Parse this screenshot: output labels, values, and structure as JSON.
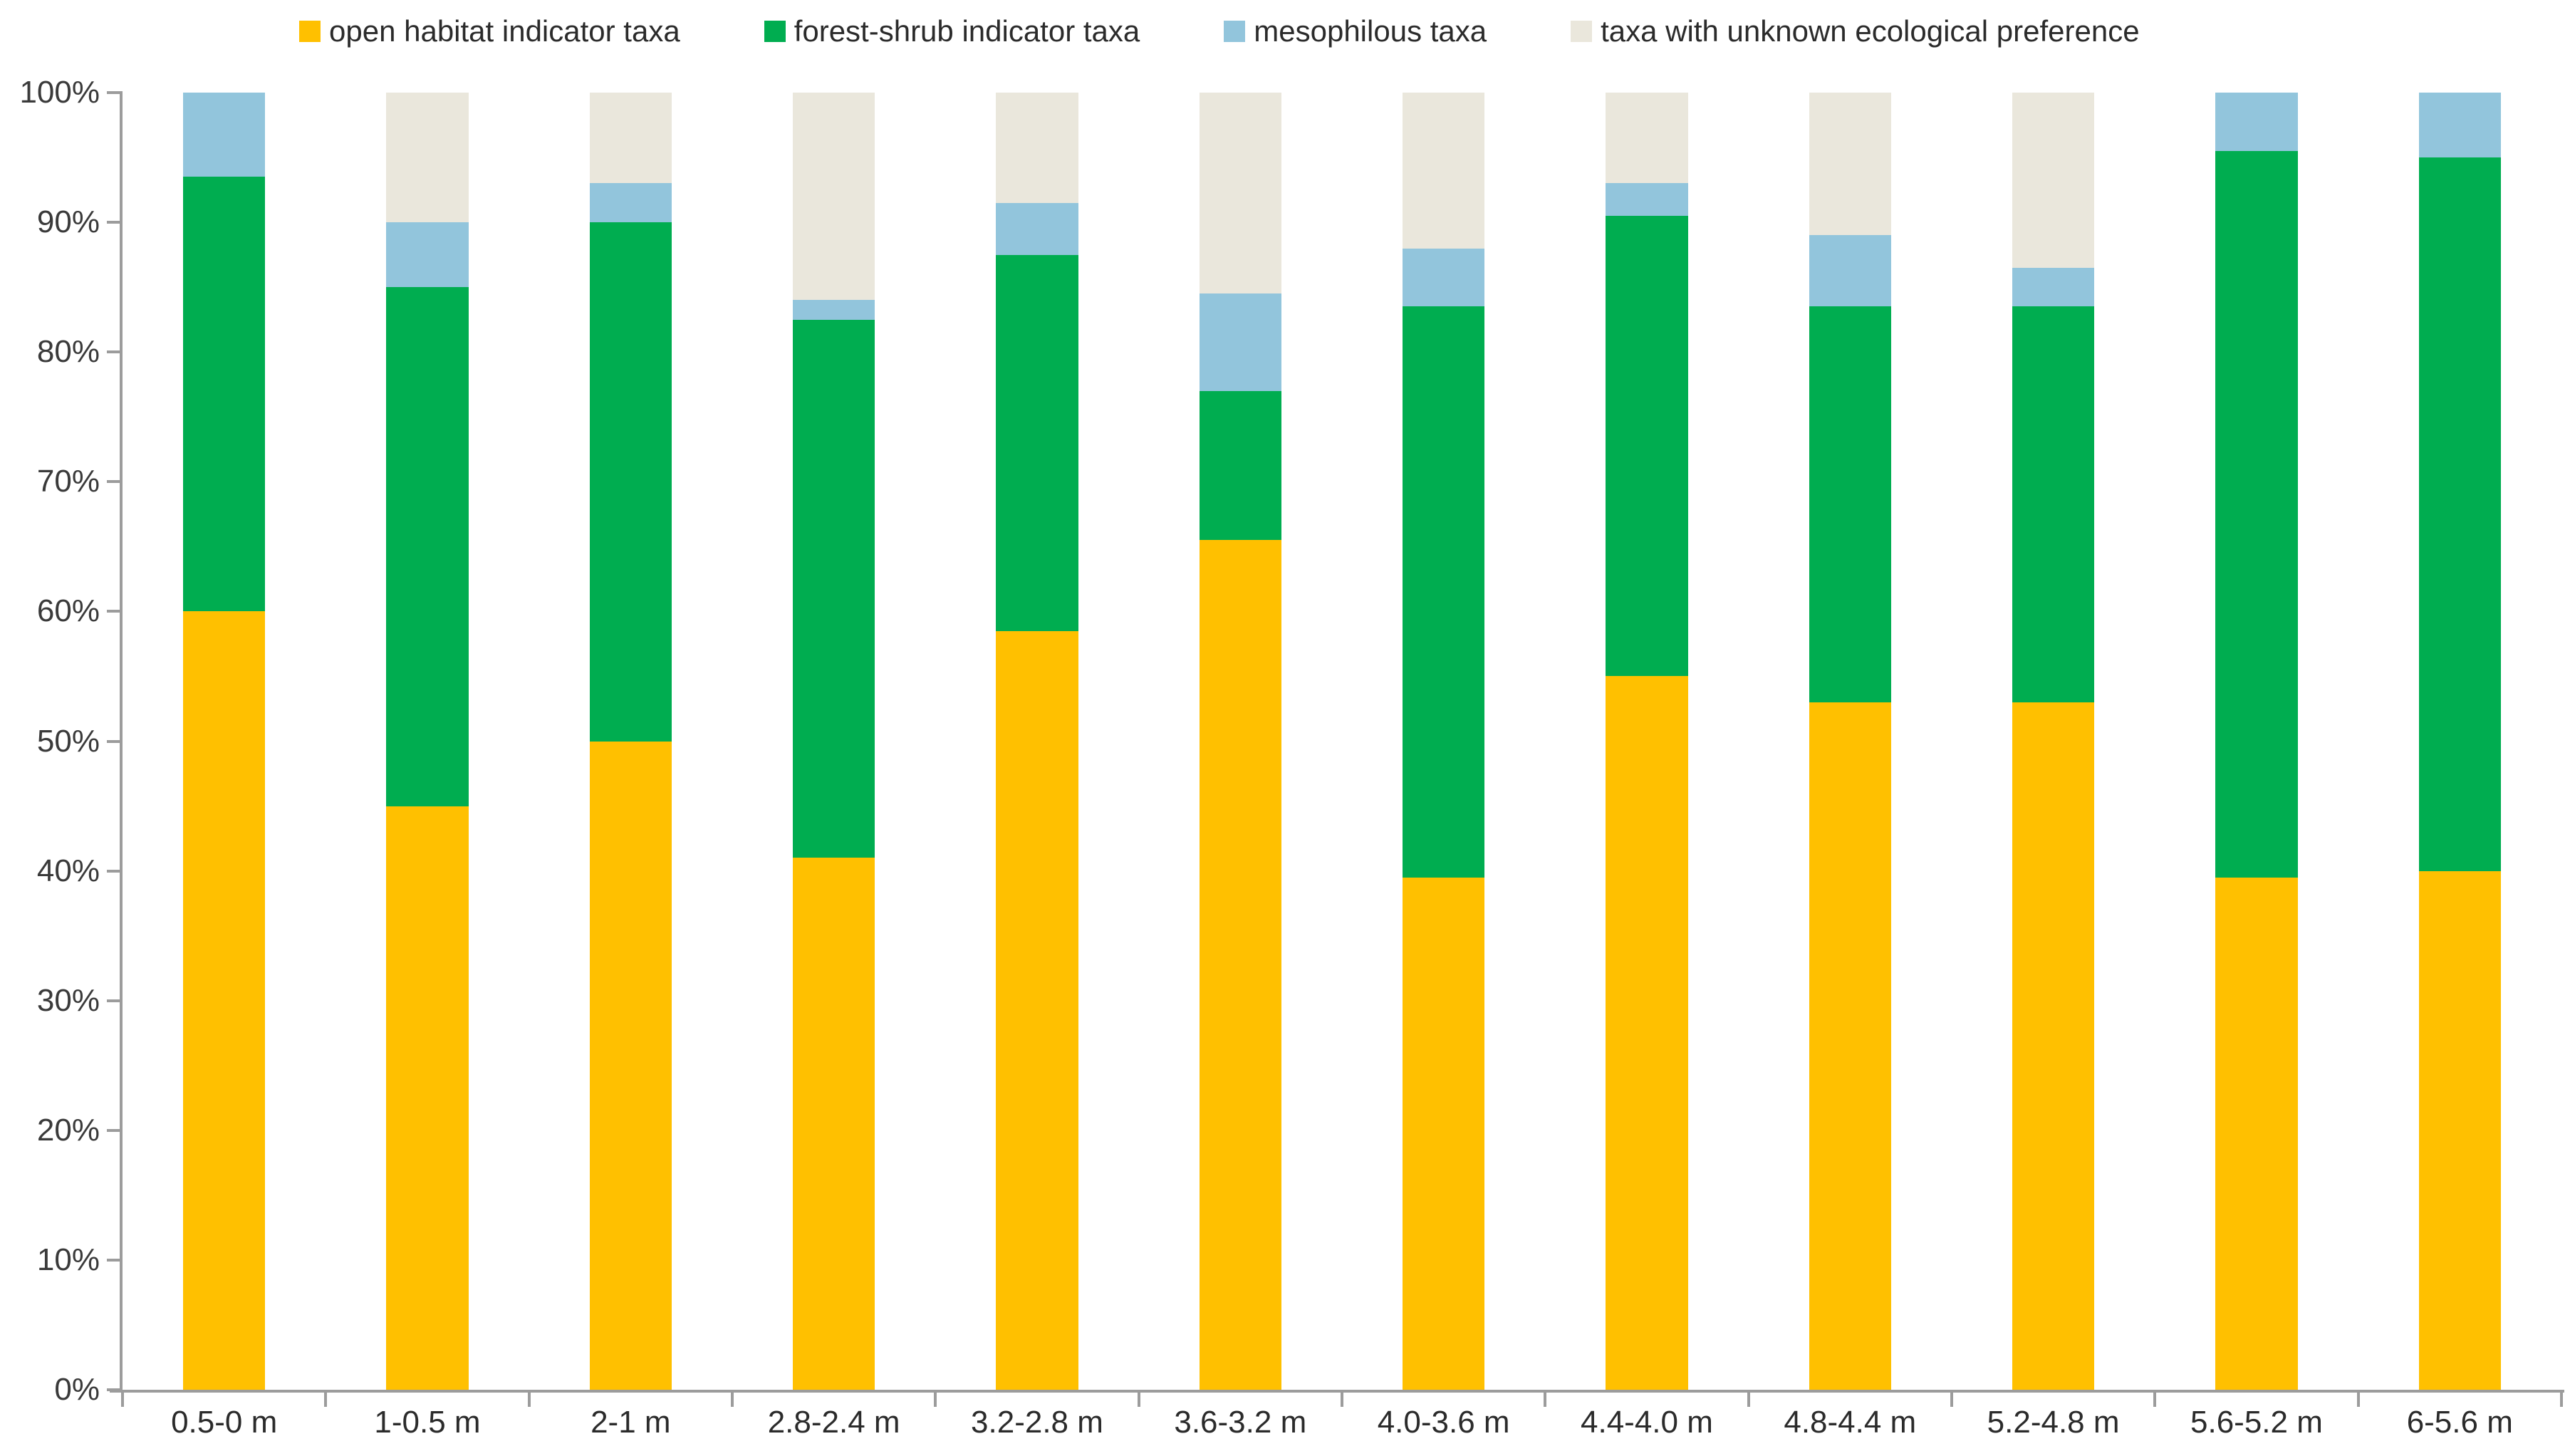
{
  "chart_data": {
    "type": "bar",
    "variant": "100%-stacked-column",
    "title": "",
    "xlabel": "",
    "ylabel": "",
    "ylim": [
      0,
      100
    ],
    "ytick_step": 10,
    "ytick_labels": [
      "0%",
      "10%",
      "20%",
      "30%",
      "40%",
      "50%",
      "60%",
      "70%",
      "80%",
      "90%",
      "100%"
    ],
    "grid": false,
    "legend_position": "top",
    "axis_color": "#9c9c9c",
    "label_color": "#2b2b2b",
    "categories": [
      "0.5-0 m",
      "1-0.5 m",
      "2-1 m",
      "2.8-2.4 m",
      "3.2-2.8 m",
      "3.6-3.2 m",
      "4.0-3.6 m",
      "4.4-4.0 m",
      "4.8-4.4 m",
      "5.2-4.8 m",
      "5.6-5.2 m",
      "6-5.6 m"
    ],
    "series": [
      {
        "name": "open habitat indicator taxa",
        "color": "#FFC000",
        "values": [
          60,
          45,
          50,
          41,
          58.5,
          65.5,
          39.5,
          55,
          53,
          53,
          39.5,
          40
        ]
      },
      {
        "name": "forest-shrub indicator taxa",
        "color": "#00AD50",
        "values": [
          33.5,
          40,
          40,
          41.5,
          29,
          11.5,
          44,
          35.5,
          30.5,
          30.5,
          56,
          55
        ]
      },
      {
        "name": "mesophilous taxa",
        "color": "#92C5DC",
        "values": [
          6.5,
          5,
          3,
          1.5,
          4,
          7.5,
          4.5,
          2.5,
          5.5,
          3,
          4.5,
          5
        ]
      },
      {
        "name": "taxa with unknown ecological preference",
        "color": "#EAE7DC",
        "values": [
          0,
          10,
          7,
          16,
          8.5,
          15.5,
          12,
          7,
          11,
          13.5,
          0,
          0
        ]
      }
    ]
  }
}
